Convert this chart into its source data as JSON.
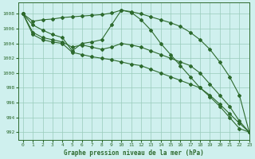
{
  "title": "Graphe pression niveau de la mer (hPa)",
  "bg_color": "#cff0ee",
  "grid_color": "#99ccbb",
  "line_color": "#2d6a2d",
  "xlim": [
    -0.5,
    23
  ],
  "ylim": [
    991,
    1009.5
  ],
  "yticks": [
    992,
    994,
    996,
    998,
    1000,
    1002,
    1004,
    1006,
    1008
  ],
  "xticks": [
    0,
    1,
    2,
    3,
    4,
    5,
    6,
    7,
    8,
    9,
    10,
    11,
    12,
    13,
    14,
    15,
    16,
    17,
    18,
    19,
    20,
    21,
    22,
    23
  ],
  "series": [
    {
      "x": [
        0,
        1,
        2,
        3,
        4,
        5,
        6,
        7,
        8,
        9,
        10,
        11,
        12,
        13,
        14,
        15,
        16,
        17,
        18,
        19,
        20,
        21,
        22,
        23
      ],
      "y": [
        1008,
        1007,
        1007.2,
        1007.3,
        1007.5,
        1007.6,
        1007.7,
        1007.8,
        1007.9,
        1008.1,
        1008.5,
        1008.3,
        1008.0,
        1007.6,
        1007.2,
        1006.8,
        1006.3,
        1005.5,
        1004.5,
        1003.2,
        1001.5,
        999.5,
        997.0,
        992.0
      ]
    },
    {
      "x": [
        0,
        1,
        2,
        3,
        4,
        5,
        6,
        7,
        8,
        9,
        10,
        11,
        12,
        13,
        14,
        15,
        16,
        17,
        18,
        19,
        20,
        21,
        22,
        23
      ],
      "y": [
        1008,
        1006.5,
        1005.8,
        1005.2,
        1004.8,
        1003.0,
        1004.0,
        1004.2,
        1004.5,
        1006.5,
        1008.5,
        1008.2,
        1007.2,
        1005.8,
        1004.0,
        1002.5,
        1001.0,
        999.5,
        998.0,
        996.8,
        995.5,
        994.0,
        992.5,
        992.0
      ]
    },
    {
      "x": [
        0,
        1,
        2,
        3,
        4,
        5,
        6,
        7,
        8,
        9,
        10,
        11,
        12,
        13,
        14,
        15,
        16,
        17,
        18,
        19,
        20,
        21,
        22,
        23
      ],
      "y": [
        1008,
        1005.5,
        1004.8,
        1004.5,
        1004.2,
        1003.5,
        1003.8,
        1003.5,
        1003.2,
        1003.5,
        1004.0,
        1003.8,
        1003.5,
        1003.0,
        1002.5,
        1002.0,
        1001.5,
        1001.0,
        1000.0,
        998.5,
        997.0,
        995.5,
        993.5,
        992.0
      ]
    },
    {
      "x": [
        0,
        1,
        2,
        3,
        4,
        5,
        6,
        7,
        8,
        9,
        10,
        11,
        12,
        13,
        14,
        15,
        16,
        17,
        18,
        19,
        20,
        21,
        22,
        23
      ],
      "y": [
        1008,
        1005.2,
        1004.5,
        1004.2,
        1004.0,
        1002.8,
        1002.5,
        1002.2,
        1002.0,
        1001.8,
        1001.5,
        1001.2,
        1001.0,
        1000.5,
        1000.0,
        999.5,
        999.0,
        998.5,
        998.0,
        997.0,
        995.8,
        994.5,
        993.2,
        992.0
      ]
    }
  ]
}
